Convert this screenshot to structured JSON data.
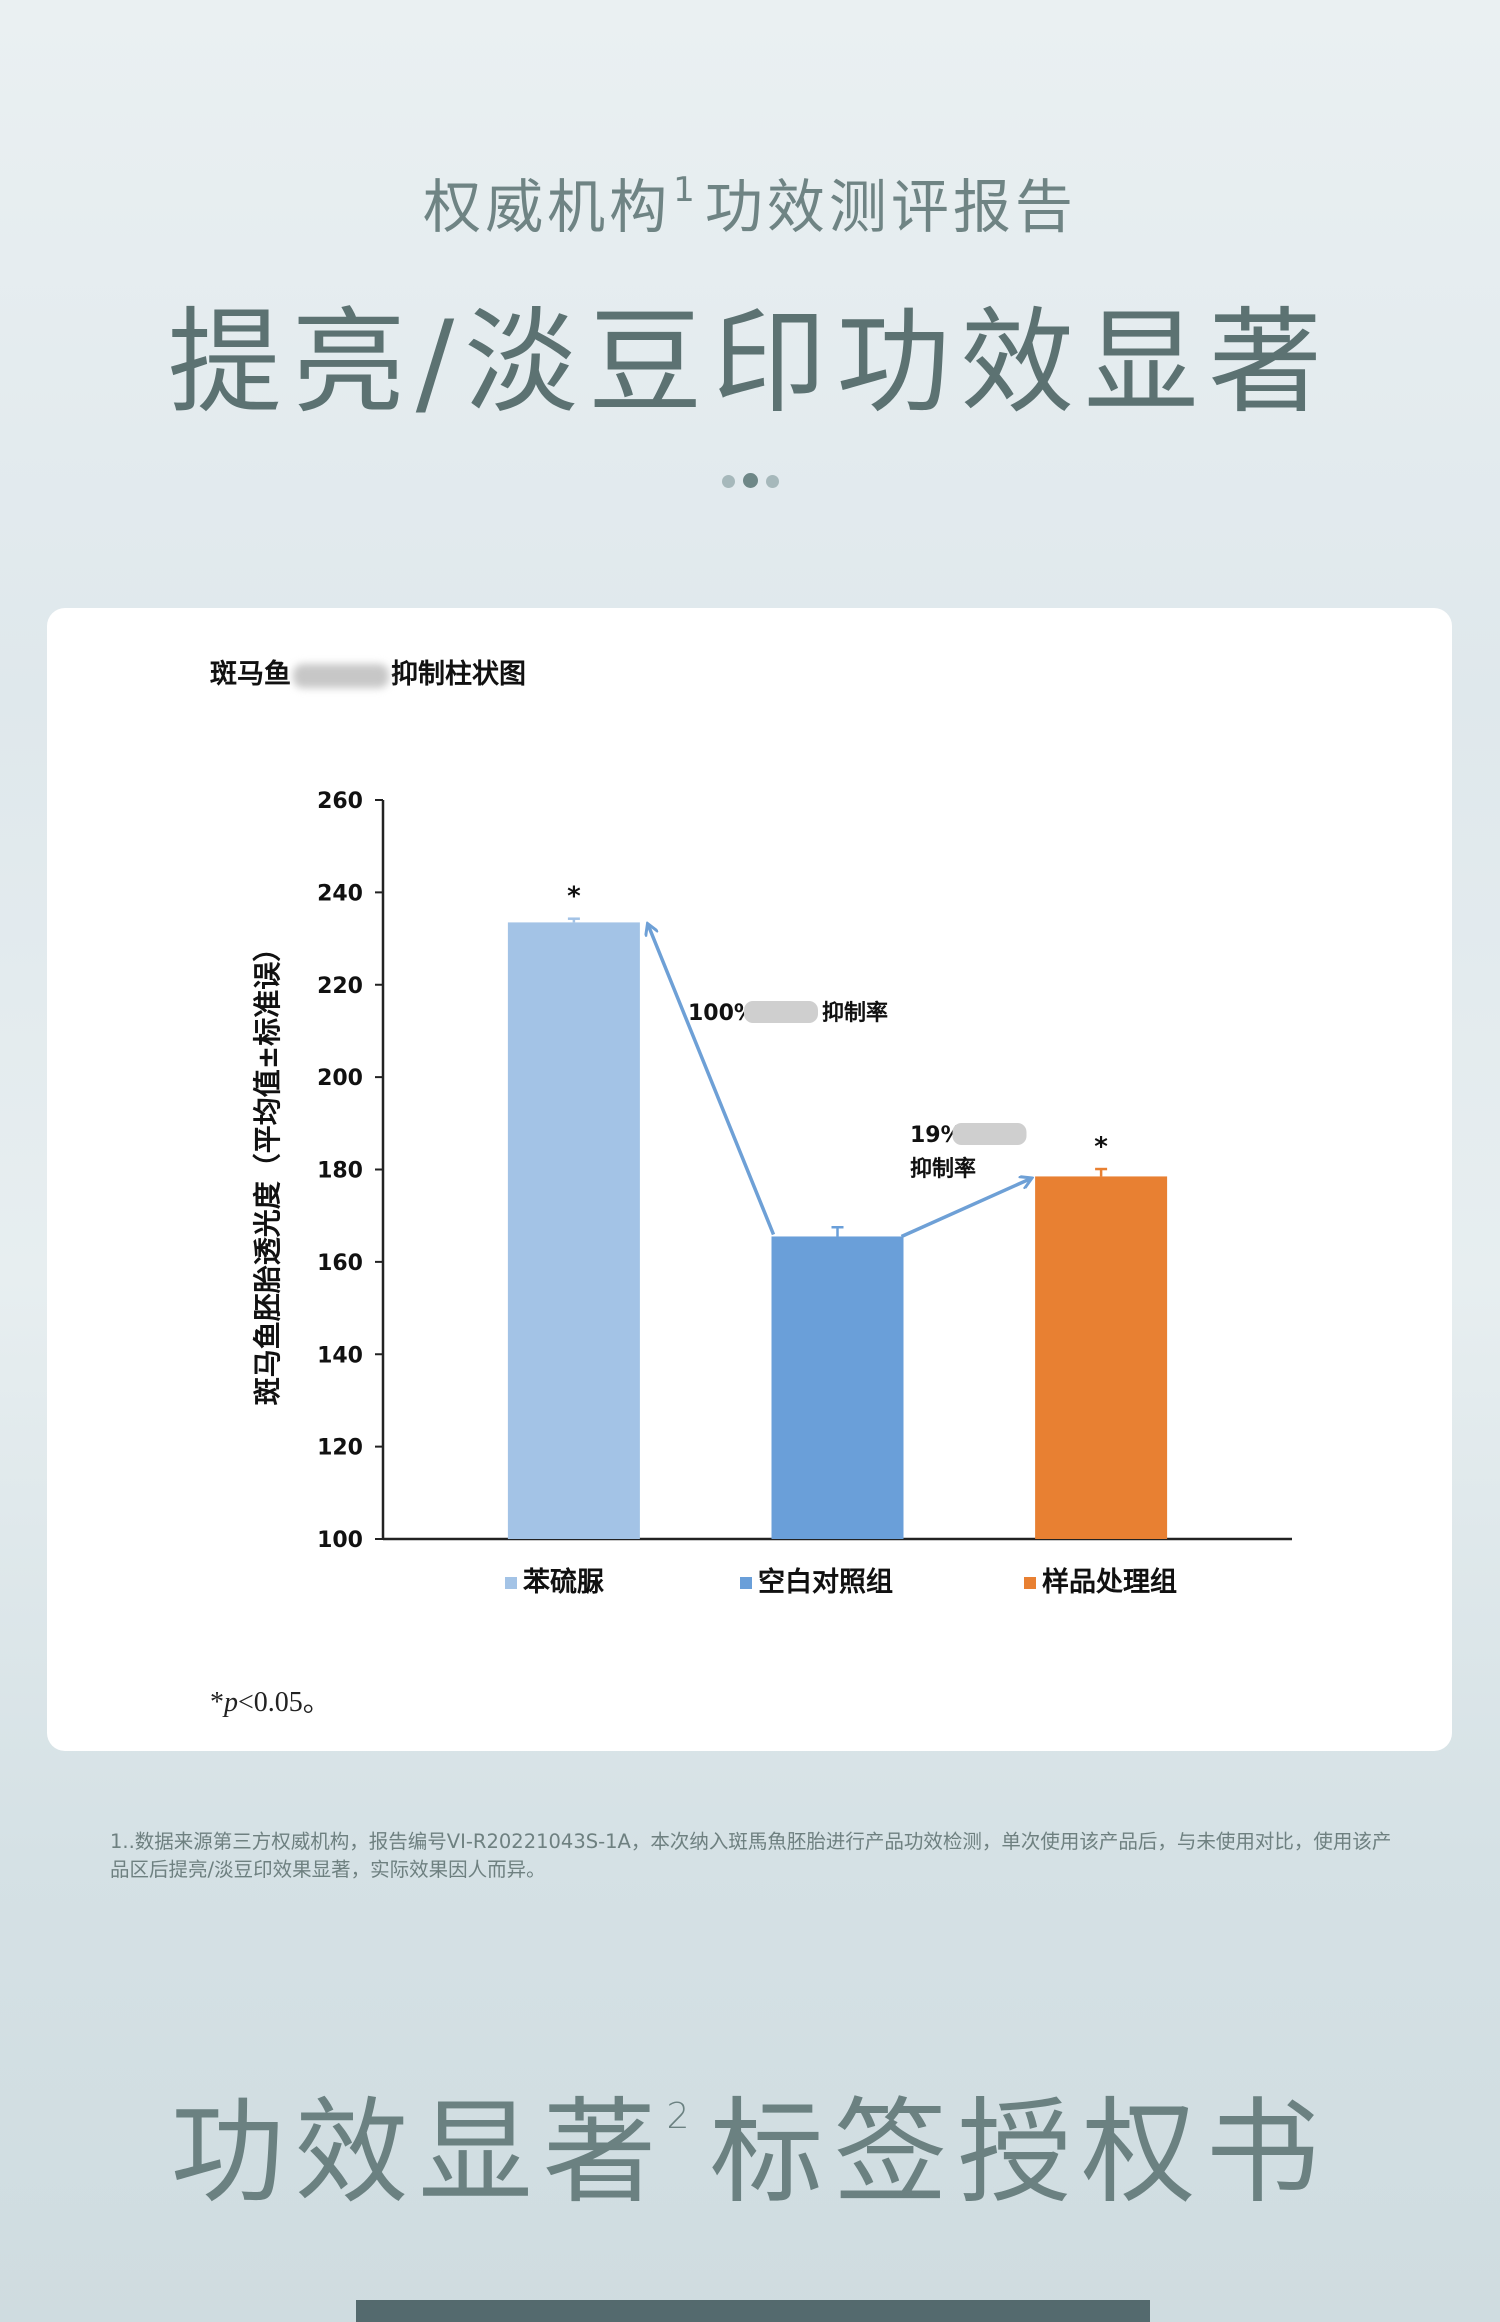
{
  "header": {
    "subtitle_main": "权威机构",
    "subtitle_sup": "1",
    "subtitle_rest": "功效测评报告",
    "title": "提亮/淡豆印功效显著"
  },
  "chart_data": {
    "type": "bar",
    "title_prefix": "斑马鱼",
    "title_suffix": "抑制柱状图",
    "ylabel": "斑马鱼胚胎透光度（平均值±标准误）",
    "ylim": [
      100,
      260
    ],
    "yticks": [
      100,
      120,
      140,
      160,
      180,
      200,
      220,
      240,
      260
    ],
    "categories": [
      "苯硫脲",
      "空白对照组",
      "样品处理组"
    ],
    "values": [
      233.5,
      165.5,
      178.5
    ],
    "errors": [
      0.8,
      2.0,
      1.6
    ],
    "significance": [
      "*",
      "",
      "*"
    ],
    "colors": [
      "#a3c3e6",
      "#6a9fd9",
      "#e88032"
    ],
    "annotations": [
      {
        "prefix": "100%",
        "suffix": "抑制率"
      },
      {
        "prefix": "19%",
        "suffix": "抑制率"
      }
    ],
    "legend": [
      "苯硫脲",
      "空白对照组",
      "样品处理组"
    ],
    "legend_position": "bottom",
    "grid": false
  },
  "footnote_sig": "*p<0.05。",
  "source_note": "1..数据来源第三方权威机构，报告编号VI-R20221043S-1A，本次纳入斑馬魚胚胎进行产品功效检测，单次使用该产品后，与未使用对比，使用该产品区后提亮/淡豆印效果显著，实际效果因人而异。",
  "bottom": {
    "title_main": "功效显著",
    "title_sup": "2",
    "title_rest": "标签授权书"
  }
}
